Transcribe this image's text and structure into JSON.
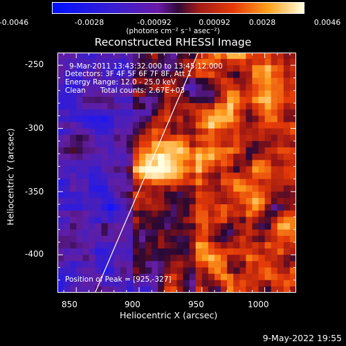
{
  "colorbar": {
    "ticks": [
      "-0.0046",
      "-0.0028",
      "-0.00092",
      "0.00092",
      "0.0028",
      "0.0046"
    ],
    "units": "(photons cm⁻² s⁻¹ asec⁻²)",
    "range": [
      -0.0046,
      0.0046
    ]
  },
  "chart_data": {
    "type": "heatmap",
    "title": "Reconstructed RHESSI Image",
    "xlabel": "Heliocentric X (arcsec)",
    "ylabel": "Heliocentric Y (arcsec)",
    "xlim": [
      835,
      1025
    ],
    "ylim": [
      -430,
      -240
    ],
    "x_ticks": [
      "850",
      "900",
      "950",
      "1000"
    ],
    "y_ticks": [
      "-250",
      "-300",
      "-350",
      "-400"
    ],
    "annotations": {
      "time": "9-Mar-2011 13:43:32.000 to 13:45:12.000",
      "detectors": "Detectors: 3F 4F 5F 6F 7F 8F, Att 1",
      "energy": "Energy Range: 12.0 - 25.0 keV",
      "method": "Clean",
      "counts": "Total counts: 2.67E+03",
      "peak": "Position of Peak = [925,-327]"
    },
    "peak_position": [
      925,
      -327
    ],
    "limb_points": [
      [
        865,
        -430
      ],
      [
        947,
        -240
      ]
    ]
  },
  "footer": {
    "date": "9-May-2022 19:55"
  }
}
